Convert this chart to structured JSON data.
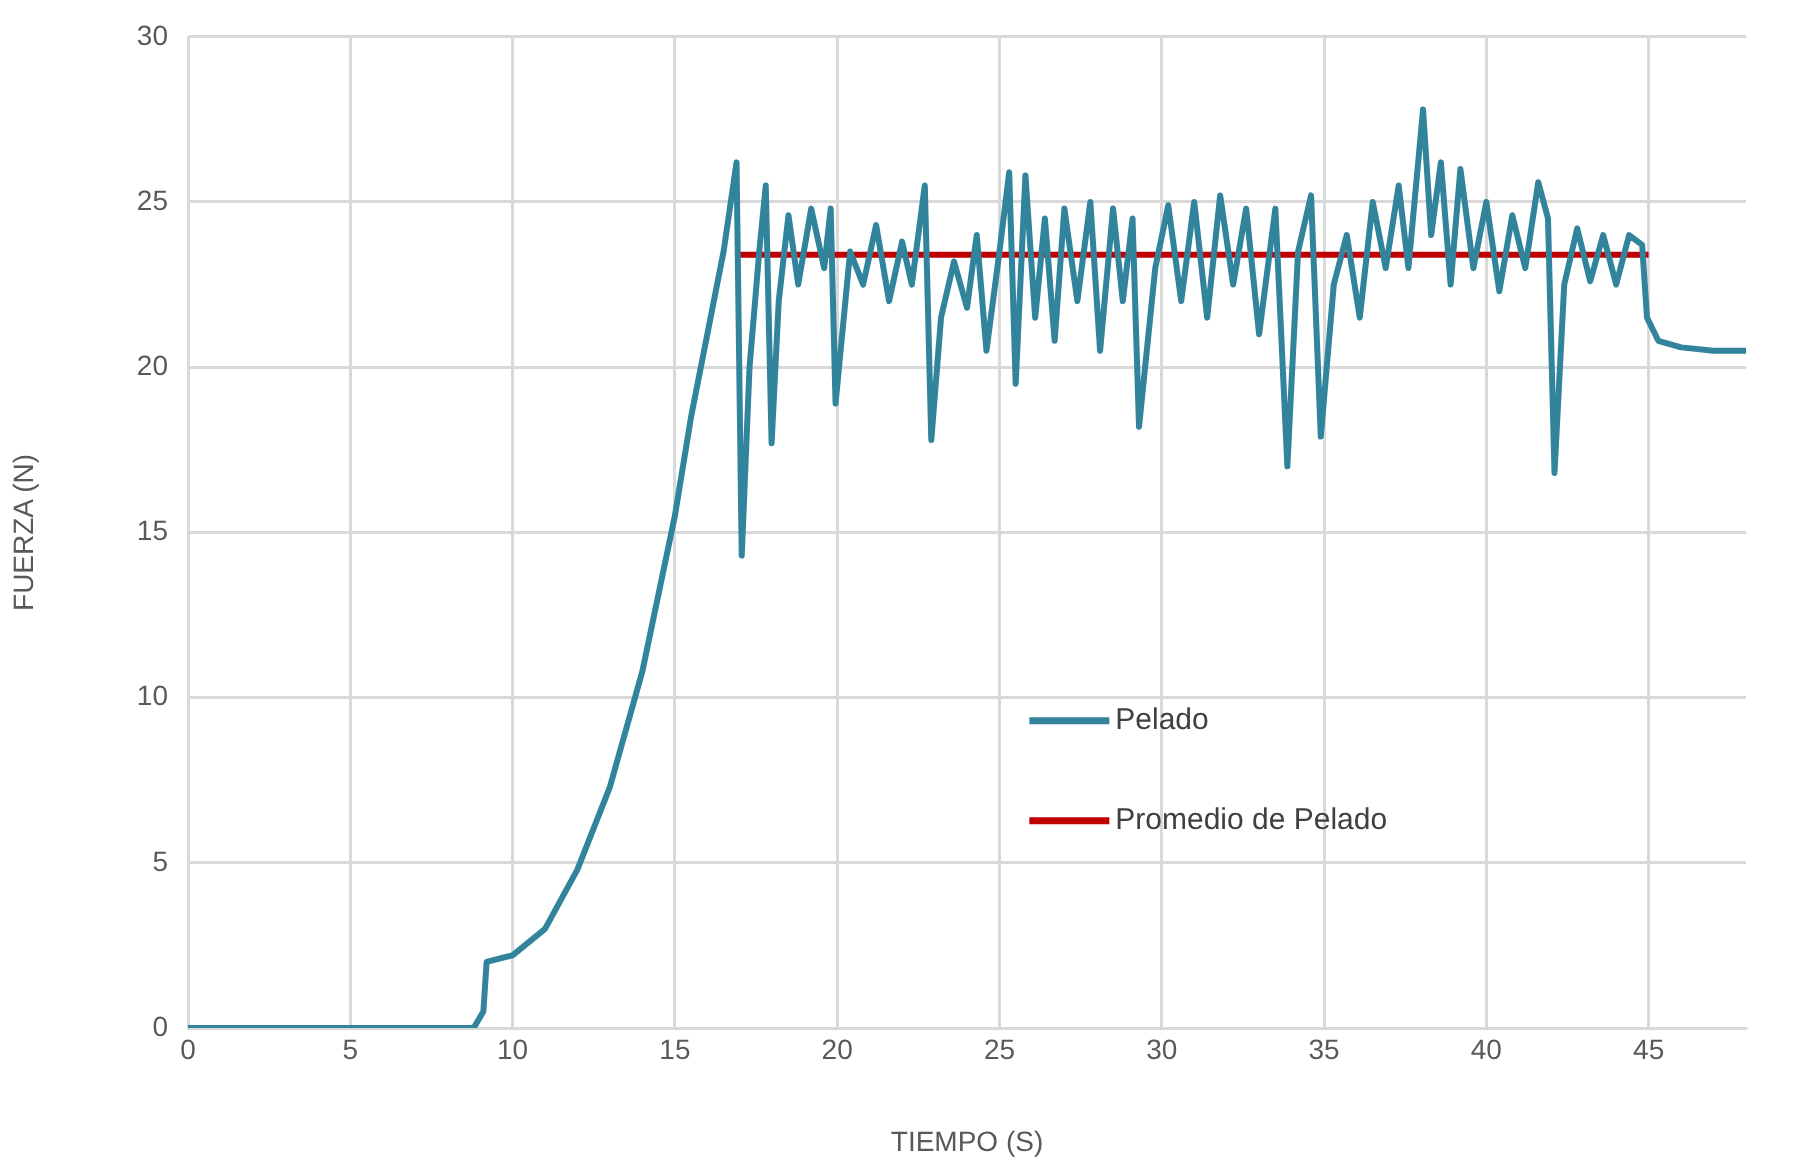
{
  "chart_data": {
    "type": "line",
    "xlabel": "TIEMPO (S)",
    "ylabel": "FUERZA (N)",
    "xlim": [
      0,
      48
    ],
    "xticks": [
      0,
      5,
      10,
      15,
      20,
      25,
      30,
      35,
      40,
      45
    ],
    "ylim": [
      0,
      30
    ],
    "yticks": [
      0,
      5,
      10,
      15,
      20,
      25,
      30
    ],
    "grid": true,
    "legend": "center",
    "marker": "none",
    "line_style": "solid",
    "series": [
      {
        "name": "Pelado",
        "color": "#31849b",
        "x": [
          0,
          4,
          8.8,
          9.1,
          9.2,
          10,
          11,
          12,
          13,
          14,
          15,
          15.5,
          16,
          16.5,
          16.9,
          17.06,
          17.3,
          17.6,
          17.8,
          17.98,
          18.2,
          18.5,
          18.8,
          19.2,
          19.6,
          19.8,
          19.95,
          20.4,
          20.8,
          21.2,
          21.6,
          22,
          22.3,
          22.7,
          22.9,
          23.2,
          23.6,
          24,
          24.3,
          24.6,
          25,
          25.3,
          25.5,
          25.8,
          26.1,
          26.4,
          26.7,
          27,
          27.4,
          27.8,
          28.1,
          28.5,
          28.8,
          29.1,
          29.3,
          29.8,
          30.2,
          30.6,
          31,
          31.4,
          31.8,
          32.2,
          32.6,
          33,
          33.5,
          33.87,
          34.2,
          34.6,
          34.9,
          35.3,
          35.7,
          36.1,
          36.5,
          36.9,
          37.3,
          37.6,
          38.05,
          38.3,
          38.6,
          38.9,
          39.2,
          39.6,
          40,
          40.4,
          40.8,
          41.2,
          41.6,
          41.9,
          42.1,
          42.4,
          42.8,
          43.2,
          43.6,
          44,
          44.4,
          44.8,
          44.95,
          45.3,
          46,
          47,
          48
        ],
        "values": [
          0,
          0,
          0,
          0.5,
          2.0,
          2.2,
          3.0,
          4.8,
          7.3,
          10.8,
          15.5,
          18.5,
          21,
          23.5,
          26.2,
          14.3,
          20,
          23.5,
          25.5,
          17.7,
          22,
          24.6,
          22.5,
          24.8,
          23,
          24.8,
          18.9,
          23.5,
          22.5,
          24.3,
          22,
          23.8,
          22.5,
          25.5,
          17.8,
          21.5,
          23.2,
          21.8,
          24,
          20.5,
          23.5,
          25.9,
          19.5,
          25.8,
          21.5,
          24.5,
          20.8,
          24.8,
          22,
          25,
          20.5,
          24.8,
          22,
          24.5,
          18.2,
          23,
          24.9,
          22,
          25,
          21.5,
          25.2,
          22.5,
          24.8,
          21,
          24.8,
          17.0,
          23.5,
          25.2,
          17.9,
          22.5,
          24,
          21.5,
          25,
          23,
          25.5,
          23,
          27.8,
          24,
          26.2,
          22.5,
          26,
          23,
          25,
          22.3,
          24.6,
          23,
          25.6,
          24.5,
          16.8,
          22.5,
          24.2,
          22.6,
          24,
          22.5,
          24,
          23.7,
          21.5,
          20.8,
          20.6,
          20.5,
          20.5
        ]
      },
      {
        "name": "Promedio de Pelado",
        "color": "#c00000",
        "x": [
          17,
          45
        ],
        "values": [
          23.4,
          23.4
        ]
      }
    ]
  }
}
